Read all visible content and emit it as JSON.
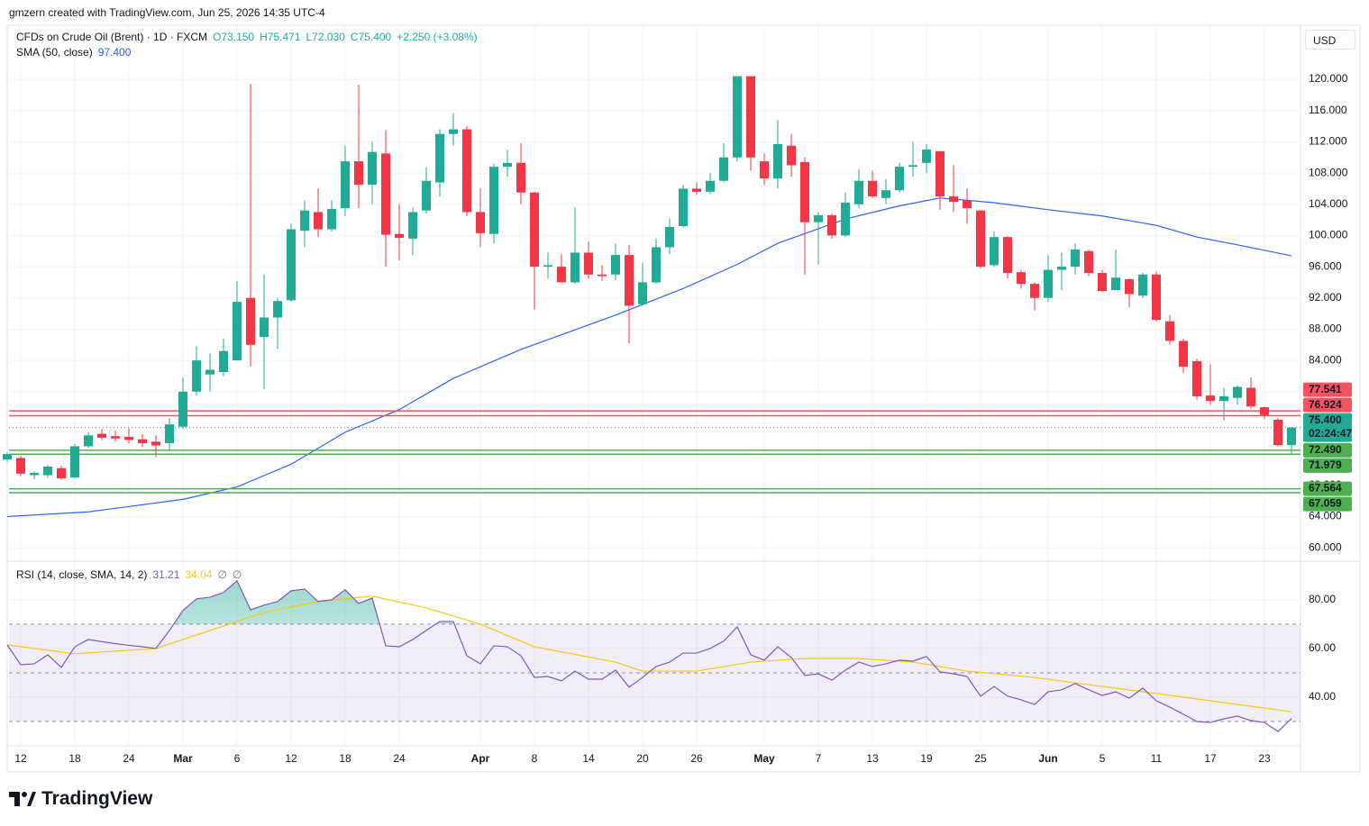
{
  "header": "gmzern created with TradingView.com, Jun 25, 2026 14:35 UTC-4",
  "logo": "TradingView",
  "chart_data": {
    "type": "candlestick",
    "title": "CFDs on Crude Oil (Brent) · 1D · FXCM",
    "legend_values": [
      "O73.150",
      "H75.471",
      "L72.030",
      "C75.400",
      "+2.250 (+3.08%)"
    ],
    "currency": "USD",
    "categories": [
      null,
      "12",
      null,
      null,
      null,
      "18",
      null,
      null,
      null,
      "24",
      null,
      null,
      null,
      "Mar",
      null,
      null,
      null,
      "6",
      null,
      null,
      null,
      "12",
      null,
      null,
      null,
      "18",
      null,
      null,
      null,
      "24",
      null,
      null,
      null,
      null,
      null,
      "Apr",
      null,
      null,
      null,
      "8",
      null,
      null,
      null,
      "14",
      null,
      null,
      null,
      "20",
      null,
      null,
      null,
      "26",
      null,
      null,
      null,
      null,
      "May",
      null,
      null,
      null,
      "7",
      null,
      null,
      null,
      "13",
      null,
      null,
      null,
      "19",
      null,
      null,
      null,
      "25",
      null,
      null,
      null,
      null,
      "Jun",
      null,
      null,
      null,
      "5",
      null,
      null,
      null,
      "11",
      null,
      null,
      null,
      "17",
      null,
      null,
      null,
      "23",
      null,
      null
    ],
    "open": [
      71.3,
      71.5,
      69.3,
      69.3,
      70.2,
      69.0,
      73.0,
      74.6,
      74.3,
      74.2,
      73.9,
      73.6,
      73.4,
      75.5,
      80.0,
      82.2,
      82.5,
      84.0,
      92.0,
      87.0,
      89.5,
      91.7,
      100.6,
      103.0,
      100.8,
      103.5,
      109.5,
      106.5,
      110.5,
      100.2,
      99.6,
      103.2,
      106.8,
      113.0,
      113.6,
      103.0,
      100.2,
      108.8,
      109.3,
      105.5,
      96.0,
      96.0,
      94.0,
      97.8,
      95.0,
      95.0,
      97.5,
      91.2,
      94.0,
      98.5,
      101.2,
      106.0,
      105.6,
      107.0,
      110.0,
      120.4,
      109.5,
      107.3,
      111.5,
      109.4,
      101.7,
      102.6,
      100.0,
      104.0,
      107.0,
      104.8,
      105.8,
      108.8,
      109.3,
      110.8,
      105.0,
      104.5,
      103.2,
      96.2,
      99.8,
      95.3,
      93.8,
      92.0,
      95.6,
      96.0,
      98.0,
      95.2,
      93.0,
      94.4,
      92.3,
      95.0,
      89.0,
      86.5,
      83.9,
      79.5,
      78.8,
      79.2,
      80.5,
      78.0,
      76.4,
      73.15
    ],
    "high": [
      72.2,
      71.8,
      69.8,
      70.6,
      70.5,
      73.3,
      74.8,
      75.2,
      75.0,
      75.3,
      74.6,
      74.4,
      76.6,
      81.8,
      85.8,
      84.9,
      86.8,
      94.2,
      119.4,
      95.0,
      92.0,
      101.5,
      104.5,
      106.0,
      104.5,
      111.5,
      119.3,
      112.0,
      113.5,
      104.0,
      103.6,
      108.7,
      113.6,
      115.7,
      114.0,
      106.0,
      109.2,
      111.0,
      111.8,
      105.6,
      97.8,
      97.6,
      103.6,
      99.2,
      96.2,
      99.0,
      98.8,
      96.5,
      99.6,
      102.2,
      106.5,
      106.8,
      108.0,
      111.8,
      120.4,
      120.4,
      110.5,
      114.8,
      113.0,
      110.0,
      103.0,
      102.8,
      105.5,
      108.5,
      108.3,
      107.2,
      109.3,
      112.0,
      111.7,
      110.8,
      109.0,
      106.0,
      103.3,
      100.5,
      99.9,
      95.6,
      94.0,
      97.5,
      97.8,
      99.0,
      98.2,
      95.6,
      98.2,
      94.5,
      95.2,
      95.4,
      89.8,
      86.8,
      84.2,
      83.5,
      80.5,
      80.8,
      81.8,
      78.1,
      76.6,
      75.471
    ],
    "low": [
      71.0,
      69.2,
      68.8,
      69.0,
      68.7,
      68.9,
      72.8,
      73.8,
      73.6,
      73.4,
      72.9,
      71.6,
      72.5,
      75.3,
      79.5,
      80.0,
      82.0,
      84.0,
      83.2,
      80.3,
      85.5,
      91.5,
      98.5,
      99.8,
      100.5,
      102.5,
      103.5,
      104.0,
      96.0,
      96.8,
      97.5,
      102.8,
      105.0,
      111.5,
      102.5,
      98.5,
      99.0,
      107.5,
      104.0,
      90.5,
      94.5,
      94.0,
      93.8,
      94.5,
      94.2,
      94.3,
      86.2,
      91.0,
      93.8,
      97.6,
      101.0,
      105.2,
      105.3,
      106.8,
      109.5,
      108.3,
      106.5,
      106.0,
      107.5,
      95.0,
      96.3,
      99.6,
      99.8,
      103.5,
      104.8,
      104.0,
      105.5,
      107.5,
      108.0,
      103.3,
      103.0,
      101.5,
      95.8,
      96.0,
      94.5,
      93.2,
      90.4,
      91.5,
      93.0,
      95.0,
      94.8,
      92.8,
      93.0,
      90.8,
      92.0,
      89.0,
      86.0,
      82.4,
      79.0,
      78.3,
      76.3,
      78.3,
      77.8,
      76.5,
      73.0,
      72.03
    ],
    "close": [
      72.0,
      69.5,
      69.6,
      70.4,
      68.9,
      73.0,
      74.4,
      74.1,
      74.0,
      73.8,
      73.4,
      73.1,
      75.8,
      80.0,
      84.0,
      82.8,
      85.2,
      91.5,
      86.0,
      89.5,
      91.6,
      100.8,
      103.2,
      100.8,
      103.4,
      109.5,
      106.5,
      110.7,
      100.1,
      99.7,
      103.0,
      107.0,
      113.0,
      113.6,
      103.0,
      100.3,
      108.8,
      109.3,
      105.5,
      96.0,
      96.2,
      94.0,
      97.8,
      95.0,
      94.8,
      97.5,
      91.0,
      94.0,
      98.5,
      101.1,
      106.0,
      105.6,
      107.0,
      110.0,
      120.4,
      110.0,
      107.3,
      111.7,
      109.0,
      101.7,
      102.6,
      100.0,
      104.2,
      107.0,
      105.0,
      105.8,
      108.8,
      109.0,
      111.0,
      105.0,
      104.3,
      103.5,
      96.0,
      99.8,
      95.2,
      93.8,
      92.0,
      95.6,
      96.0,
      98.2,
      95.2,
      92.9,
      94.6,
      92.5,
      95.0,
      89.2,
      86.5,
      83.2,
      79.4,
      78.8,
      79.4,
      80.6,
      78.1,
      77.0,
      73.15,
      75.4
    ],
    "up_color": "#22ab94",
    "down_color": "#f23645",
    "ylim": [
      58.4,
      126.7
    ],
    "yticks": [
      {
        "value": 60,
        "label": "60.000"
      },
      {
        "value": 64,
        "label": "64.000"
      },
      {
        "value": 68,
        "label": "68.000"
      },
      {
        "value": 72,
        "label": "72.000"
      },
      {
        "value": 76,
        "label": "76.000"
      },
      {
        "value": 80,
        "label": "80.000"
      },
      {
        "value": 84,
        "label": "84.000"
      },
      {
        "value": 88,
        "label": "88.000"
      },
      {
        "value": 92,
        "label": "92.000"
      },
      {
        "value": 96,
        "label": "96.000"
      },
      {
        "value": 100,
        "label": "100.000"
      },
      {
        "value": 104,
        "label": "104.000"
      },
      {
        "value": 108,
        "label": "108.000"
      },
      {
        "value": 112,
        "label": "112.000"
      },
      {
        "value": 116,
        "label": "116.000"
      },
      {
        "value": 120,
        "label": "120.000"
      }
    ],
    "grid": true,
    "sma": {
      "name": "SMA (50, close)",
      "value_label": "97.400",
      "color": "#2962ff",
      "x": [
        0,
        6,
        13,
        17,
        21,
        25,
        29,
        33,
        38,
        45,
        50,
        54,
        57,
        62,
        66,
        69,
        73,
        77,
        81,
        85,
        88,
        91,
        95
      ],
      "values": [
        64.0,
        64.6,
        66.2,
        67.8,
        70.7,
        74.8,
        77.7,
        81.7,
        85.4,
        89.8,
        93.2,
        96.3,
        99.0,
        102.1,
        103.8,
        104.8,
        104.2,
        103.3,
        102.5,
        101.3,
        99.8,
        98.8,
        97.4
      ]
    },
    "levels": [
      {
        "value": 77.541,
        "label": "77.541",
        "color": "#f7525f"
      },
      {
        "value": 76.924,
        "label": "76.924",
        "color": "#f7525f"
      },
      {
        "value": 72.49,
        "label": "72.490",
        "color": "#4caf50"
      },
      {
        "value": 71.979,
        "label": "71.979",
        "color": "#4caf50"
      },
      {
        "value": 67.564,
        "label": "67.564",
        "color": "#4caf50"
      },
      {
        "value": 67.059,
        "label": "67.059",
        "color": "#4caf50"
      }
    ],
    "last_price": {
      "value": 75.4,
      "label": "75.400",
      "countdown": "02:24:47"
    },
    "rsi": {
      "title": "RSI (14, close, SMA, 14, 2)",
      "ylim": [
        20,
        95.5
      ],
      "yticks": [
        {
          "value": 40,
          "label": "40.00"
        },
        {
          "value": 60,
          "label": "60.00"
        },
        {
          "value": 80,
          "label": "80.00"
        }
      ],
      "bands": [
        70,
        50,
        30
      ],
      "line": {
        "color": "#7e57c2",
        "value_label": "31.21",
        "values": [
          61.5,
          53.3,
          53.7,
          57.4,
          52.2,
          60.7,
          63.7,
          62.8,
          62.0,
          61.3,
          60.7,
          60.0,
          67.4,
          75.6,
          80.4,
          81.1,
          83.0,
          87.8,
          75.9,
          77.8,
          79.3,
          83.7,
          84.4,
          79.3,
          80.0,
          84.1,
          78.5,
          80.7,
          61.1,
          60.7,
          63.7,
          67.4,
          71.1,
          71.1,
          57.0,
          53.7,
          61.1,
          60.7,
          57.0,
          48.1,
          48.5,
          46.7,
          50.7,
          47.4,
          47.4,
          51.1,
          44.1,
          48.1,
          52.6,
          54.4,
          58.1,
          58.1,
          60.0,
          63.0,
          68.9,
          57.4,
          55.2,
          60.7,
          56.3,
          48.9,
          49.6,
          47.0,
          51.1,
          54.4,
          52.6,
          53.7,
          55.2,
          54.8,
          56.7,
          50.4,
          49.6,
          48.5,
          40.4,
          44.4,
          40.4,
          38.9,
          37.0,
          42.2,
          43.0,
          45.6,
          43.0,
          40.7,
          42.2,
          39.6,
          43.7,
          38.5,
          35.9,
          33.0,
          30.0,
          29.6,
          31.1,
          32.2,
          30.4,
          29.6,
          25.9,
          31.21
        ]
      },
      "sma": {
        "color": "#f7c80f",
        "value_label": "34.04",
        "x": [
          0,
          5,
          11,
          15,
          19,
          23,
          27,
          31,
          35,
          39,
          45,
          47,
          51,
          55,
          59,
          63,
          67,
          71,
          76,
          81,
          85,
          89,
          95
        ],
        "values": [
          61.5,
          57.8,
          60.0,
          67.4,
          74.8,
          79.3,
          81.5,
          76.7,
          70.0,
          60.7,
          54.4,
          50.7,
          50.7,
          54.4,
          55.9,
          55.9,
          54.4,
          50.7,
          48.1,
          44.4,
          41.5,
          38.5,
          34.04
        ]
      },
      "extra_labels": [
        "∅",
        "∅"
      ]
    }
  }
}
